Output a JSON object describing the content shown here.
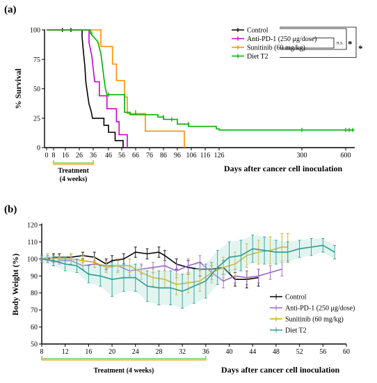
{
  "chart_data": [
    {
      "panel": "(a)",
      "type": "line",
      "step": true,
      "ylabel": "% Survival",
      "xlabel": "Days after cancer cell inoculation",
      "ylim": [
        0,
        100
      ],
      "y_ticks": [
        "0",
        "25",
        "50",
        "75",
        "100"
      ],
      "y_tick_values": [
        0,
        25,
        50,
        75,
        100
      ],
      "x_ticks": [
        "0",
        "8",
        "16",
        "26",
        "36",
        "46",
        "56",
        "66",
        "76",
        "86",
        "96",
        "106",
        "116",
        "126",
        "300",
        "600"
      ],
      "x_tick_values": [
        0,
        8,
        16,
        26,
        36,
        46,
        56,
        66,
        76,
        86,
        96,
        106,
        116,
        126,
        300,
        600
      ],
      "grid": false,
      "legend_position": "top-right",
      "treatment": {
        "label_line1": "Treatment",
        "label_line2": "(4 weeks)",
        "start": 8,
        "end": 36
      },
      "significance": [
        {
          "label": "n.s.",
          "from": "Anti-PD-1 (250 μg/dose)",
          "to": "Sunitinib (60 mg/kg)"
        },
        {
          "label": "*",
          "from": "Control",
          "to": "Sunitinib (60 mg/kg)"
        },
        {
          "label": "*",
          "from": "Control",
          "to": "Diet T2"
        }
      ],
      "series": [
        {
          "name": "Control",
          "color": "#000000",
          "points": [
            [
              0,
              100
            ],
            [
              28,
              100
            ],
            [
              28,
              94
            ],
            [
              29,
              81
            ],
            [
              30,
              69
            ],
            [
              30.7,
              56
            ],
            [
              31.4,
              50
            ],
            [
              32.1,
              44
            ],
            [
              33,
              37
            ],
            [
              34.5,
              31
            ],
            [
              35.5,
              25
            ],
            [
              43,
              25
            ],
            [
              43,
              19
            ],
            [
              46,
              19
            ],
            [
              46,
              13
            ],
            [
              51,
              13
            ],
            [
              51,
              6
            ],
            [
              57,
              6
            ],
            [
              57,
              0
            ]
          ],
          "censored": [
            [
              14,
              100
            ],
            [
              20,
              100
            ]
          ]
        },
        {
          "name": "Anti-PD-1 (250 μg/dose)",
          "color": "#cc00cc",
          "points": [
            [
              0,
              100
            ],
            [
              33,
              100
            ],
            [
              33,
              89
            ],
            [
              35,
              78
            ],
            [
              36,
              67
            ],
            [
              37,
              56
            ],
            [
              40,
              56
            ],
            [
              40,
              44
            ],
            [
              45,
              44
            ],
            [
              45,
              33
            ],
            [
              52,
              33
            ],
            [
              52,
              22
            ],
            [
              54,
              22
            ],
            [
              54,
              11
            ],
            [
              60,
              11
            ],
            [
              60,
              0
            ]
          ],
          "censored": []
        },
        {
          "name": "Sunitinib (60 mg/kg)",
          "color": "#ff8c00",
          "points": [
            [
              0,
              100
            ],
            [
              41,
              100
            ],
            [
              41,
              86
            ],
            [
              49,
              86
            ],
            [
              49,
              71
            ],
            [
              52,
              71
            ],
            [
              52,
              57
            ],
            [
              58,
              57
            ],
            [
              58,
              43
            ],
            [
              60,
              43
            ],
            [
              60,
              29
            ],
            [
              73,
              29
            ],
            [
              73,
              14
            ],
            [
              101,
              14
            ],
            [
              101,
              0
            ]
          ],
          "censored": []
        },
        {
          "name": "Diet T2",
          "color": "#00b000",
          "points": [
            [
              0,
              100
            ],
            [
              34,
              100
            ],
            [
              34,
              97
            ],
            [
              37,
              93
            ],
            [
              39,
              90
            ],
            [
              41,
              80
            ],
            [
              42,
              70
            ],
            [
              43,
              59
            ],
            [
              44,
              50
            ],
            [
              45,
              45
            ],
            [
              58,
              45
            ],
            [
              58,
              30
            ],
            [
              62,
              30
            ],
            [
              62,
              28
            ],
            [
              82,
              28
            ],
            [
              82,
              26
            ],
            [
              86,
              26
            ],
            [
              86,
              24
            ],
            [
              96,
              24
            ],
            [
              96,
              20
            ],
            [
              104,
              20
            ],
            [
              104,
              18
            ],
            [
              124,
              18
            ],
            [
              124,
              16
            ],
            [
              126,
              16
            ],
            [
              126,
              15
            ],
            [
              650,
              15
            ]
          ],
          "censored": [
            [
              35,
              97
            ],
            [
              46,
              45
            ],
            [
              66,
              30
            ],
            [
              86,
              26
            ],
            [
              92,
              24
            ],
            [
              104,
              20
            ],
            [
              300,
              15
            ],
            [
              600,
              15
            ],
            [
              620,
              15
            ],
            [
              640,
              15
            ]
          ]
        }
      ]
    },
    {
      "panel": "(b)",
      "type": "line",
      "ylabel": "Body Weight (%)",
      "xlabel": "Days after cancer cell inoculation",
      "xlim": [
        8,
        60
      ],
      "ylim": [
        50,
        120
      ],
      "y_ticks": [
        "50",
        "60",
        "70",
        "80",
        "90",
        "100",
        "110",
        "120"
      ],
      "y_tick_values": [
        50,
        60,
        70,
        80,
        90,
        100,
        110,
        120
      ],
      "x_ticks": [
        "8",
        "12",
        "16",
        "20",
        "24",
        "28",
        "32",
        "36",
        "40",
        "44",
        "48",
        "52",
        "56",
        "60"
      ],
      "x_tick_values": [
        8,
        12,
        16,
        20,
        24,
        28,
        32,
        36,
        40,
        44,
        48,
        52,
        56,
        60
      ],
      "grid": false,
      "legend_position": "bottom-right",
      "treatment": {
        "label": "Treatment (4 weeks)",
        "start": 8,
        "end": 36
      },
      "series": [
        {
          "name": "Control",
          "color": "#000000",
          "x": [
            8,
            9,
            10,
            11,
            13,
            15,
            17,
            19,
            20,
            22,
            24,
            26,
            28,
            29,
            31,
            33,
            35,
            37,
            39,
            41,
            43,
            45
          ],
          "y": [
            100,
            100,
            101,
            101,
            101,
            102,
            101,
            97,
            99,
            100,
            104,
            103,
            104,
            102,
            97,
            95,
            94,
            94,
            95,
            88,
            88,
            89
          ],
          "err": [
            1,
            2,
            2,
            2,
            2,
            2,
            3,
            3,
            3,
            3,
            3,
            3,
            3,
            3,
            3,
            4,
            4,
            4,
            4,
            4,
            5,
            5
          ]
        },
        {
          "name": "Anti-PD-1 (250 μg/dose)",
          "color": "#9966cc",
          "x": [
            8,
            9,
            10,
            11,
            13,
            15,
            17,
            19,
            21,
            23,
            25,
            27,
            29,
            31,
            33,
            35,
            37,
            39,
            41,
            43,
            45,
            47,
            49
          ],
          "y": [
            100,
            100,
            98,
            99,
            99,
            96,
            97,
            96,
            96,
            93,
            94,
            95,
            96,
            93,
            96,
            98,
            92,
            87,
            90,
            89,
            90,
            92,
            94
          ],
          "err": [
            1,
            2,
            2,
            2,
            2,
            2,
            2,
            3,
            3,
            3,
            3,
            3,
            3,
            4,
            4,
            4,
            4,
            4,
            4,
            4,
            4,
            4,
            4
          ]
        },
        {
          "name": "Sunitinib (60 mg/kg)",
          "color": "#d4a800",
          "x": [
            8,
            9,
            11,
            13,
            15,
            17,
            19,
            21,
            23,
            25,
            27,
            29,
            31,
            33,
            35,
            37,
            39,
            41,
            43,
            45,
            47,
            49,
            50
          ],
          "y": [
            100,
            101,
            100,
            100,
            99,
            98,
            95,
            96,
            96,
            92,
            89,
            88,
            85,
            86,
            87,
            92,
            95,
            97,
            102,
            104,
            105,
            107,
            107
          ],
          "err": [
            2,
            2,
            2,
            3,
            3,
            3,
            3,
            4,
            4,
            4,
            5,
            5,
            6,
            6,
            6,
            6,
            6,
            7,
            7,
            7,
            8,
            8,
            8
          ]
        },
        {
          "name": "Diet T2",
          "color": "#2a9d8f",
          "x": [
            8,
            10,
            12,
            14,
            16,
            18,
            20,
            22,
            24,
            26,
            28,
            30,
            32,
            34,
            36,
            38,
            40,
            42,
            44,
            46,
            48,
            50,
            52,
            54,
            56,
            58
          ],
          "y": [
            100,
            99,
            97,
            96,
            91,
            90,
            88,
            89,
            89,
            84,
            83,
            83,
            81,
            84,
            87,
            95,
            101,
            102,
            106,
            105,
            104,
            104,
            106,
            107,
            108,
            104
          ],
          "err": [
            2,
            3,
            4,
            4,
            5,
            6,
            10,
            8,
            8,
            9,
            10,
            10,
            10,
            10,
            10,
            10,
            9,
            9,
            8,
            8,
            7,
            6,
            5,
            5,
            4,
            4
          ]
        }
      ]
    }
  ]
}
